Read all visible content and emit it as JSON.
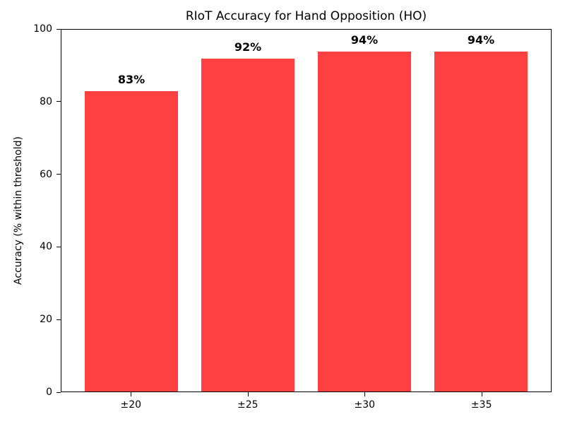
{
  "chart_data": {
    "type": "bar",
    "title": "RIoT Accuracy for Hand Opposition (HO)",
    "categories": [
      "±20",
      "±25",
      "±30",
      "±35"
    ],
    "values": [
      83,
      92,
      94,
      94
    ],
    "value_labels": [
      "83%",
      "92%",
      "94%",
      "94%"
    ],
    "xlabel": "",
    "ylabel": "Accuracy (% within threshold)",
    "ylim": [
      0,
      100
    ],
    "yticks": [
      0,
      20,
      40,
      60,
      80,
      100
    ],
    "bar_color": "#ff4040",
    "axis_color": "#000000",
    "grid": false,
    "legend_position": "none",
    "bar_width_fraction": 0.8
  }
}
